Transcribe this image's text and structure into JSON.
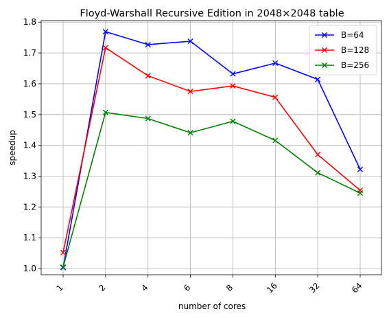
{
  "chart_data": {
    "type": "line",
    "title": "Floyd-Warshall Recursive Edition in 2048×2048 table",
    "xlabel": "number of cores",
    "ylabel": "speedup",
    "categories": [
      "1",
      "2",
      "4",
      "6",
      "8",
      "16",
      "32",
      "64"
    ],
    "ylim": [
      0.98,
      1.805
    ],
    "yticks": [
      "1.0",
      "1.1",
      "1.2",
      "1.3",
      "1.4",
      "1.5",
      "1.6",
      "1.7",
      "1.8"
    ],
    "grid": true,
    "legend_position": "top-right",
    "marker": "x",
    "series": [
      {
        "name": "B=64",
        "color": "#0000ff",
        "values": [
          1.003,
          1.769,
          1.727,
          1.738,
          1.632,
          1.667,
          1.614,
          1.322
        ]
      },
      {
        "name": "B=128",
        "color": "#ff0000",
        "values": [
          1.052,
          1.717,
          1.626,
          1.575,
          1.593,
          1.556,
          1.37,
          1.254
        ]
      },
      {
        "name": "B=256",
        "color": "#008000",
        "values": [
          1.005,
          1.507,
          1.487,
          1.441,
          1.478,
          1.416,
          1.311,
          1.245
        ]
      }
    ]
  }
}
